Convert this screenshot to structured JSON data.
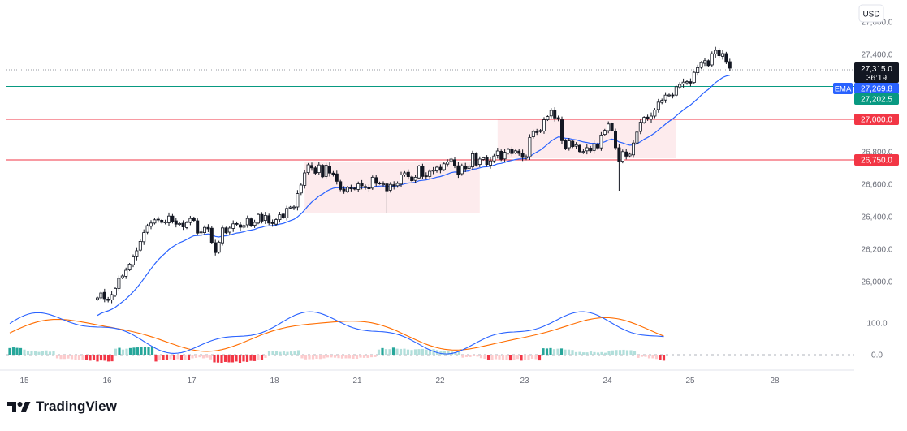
{
  "brand": {
    "name": "TradingView"
  },
  "currency": "USD",
  "price_tag": {
    "price": "27,315.0",
    "countdown": "36:19"
  },
  "colors": {
    "up": "#089981",
    "down": "#f23645",
    "ema": "#2962ff",
    "signal": "#ff6d00",
    "zone": "#fde7ea",
    "candle": "#131722"
  },
  "chart_data": {
    "type": "candlestick",
    "title": "",
    "x_ticks": [
      "15",
      "16",
      "17",
      "18",
      "21",
      "22",
      "23",
      "24",
      "25",
      "28"
    ],
    "price_ticks": [
      {
        "value": 27600,
        "label": "27,600.0"
      },
      {
        "value": 27400,
        "label": "27,400.0"
      },
      {
        "value": 26800,
        "label": "26,800.0"
      },
      {
        "value": 26600,
        "label": "26,600.0"
      },
      {
        "value": 26400,
        "label": "26,400.0"
      },
      {
        "value": 26200,
        "label": "26,200.0"
      },
      {
        "value": 26000,
        "label": "26,000.0"
      }
    ],
    "ylim": [
      25900,
      27650
    ],
    "last_price": 27315.0,
    "horizontal_lines": [
      {
        "value": 27202.5,
        "label": "27,202.5",
        "color": "#089981"
      },
      {
        "value": 27000.0,
        "label": "27,000.0",
        "color": "#f23645"
      },
      {
        "value": 26750.0,
        "label": "26,750.0",
        "color": "#f23645"
      }
    ],
    "ema": {
      "name": "EMA",
      "value_label": "27,269.8"
    },
    "zones": [
      {
        "from_bar": 58,
        "to_bar": 107,
        "low": 26420,
        "high": 26735
      },
      {
        "from_bar": 112,
        "to_bar": 162,
        "low": 26760,
        "high": 27000
      }
    ],
    "closes": [
      25900,
      25930,
      25895,
      25885,
      25920,
      25958,
      26020,
      26035,
      26070,
      26108,
      26153,
      26190,
      26248,
      26302,
      26345,
      26361,
      26381,
      26380,
      26365,
      26367,
      26404,
      26371,
      26354,
      26358,
      26337,
      26364,
      26389,
      26377,
      26299,
      26306,
      26334,
      26325,
      26242,
      26179,
      26243,
      26331,
      26301,
      26330,
      26356,
      26354,
      26335,
      26346,
      26389,
      26345,
      26365,
      26414,
      26373,
      26408,
      26361,
      26358,
      26382,
      26412,
      26395,
      26451,
      26459,
      26460,
      26542,
      26595,
      26670,
      26720,
      26701,
      26668,
      26719,
      26646,
      26717,
      26669,
      26660,
      26618,
      26568,
      26559,
      26581,
      26572,
      26570,
      26602,
      26590,
      26579,
      26572,
      26643,
      26605,
      26606,
      26602,
      26559,
      26599,
      26589,
      26605,
      26657,
      26670,
      26647,
      26622,
      26643,
      26712,
      26648,
      26650,
      26680,
      26686,
      26705,
      26686,
      26726,
      26738,
      26755,
      26714,
      26661,
      26714,
      26695,
      26711,
      26788,
      26718,
      26755,
      26763,
      26722,
      26744,
      26774,
      26805,
      26754,
      26797,
      26815,
      26789,
      26806,
      26790,
      26765,
      26770,
      26888,
      26925,
      26922,
      26931,
      26997,
      27017,
      27055,
      27008,
      27001,
      26868,
      26821,
      26867,
      26832,
      26843,
      26801,
      26802,
      26825,
      26806,
      26849,
      26824,
      26903,
      26932,
      26971,
      26932,
      26825,
      26738,
      26801,
      26773,
      26785,
      26854,
      26921,
      26982,
      27012,
      27005,
      27020,
      27057,
      27106,
      27117,
      27149,
      27150,
      27145,
      27201,
      27215,
      27229,
      27232,
      27223,
      27289,
      27318,
      27349,
      27361,
      27331,
      27404,
      27425,
      27392,
      27405,
      27351,
      27315
    ],
    "volume_histogram": [
      31,
      34,
      32,
      31,
      24,
      19,
      16,
      17,
      13,
      17,
      20,
      14,
      18,
      17,
      20,
      20,
      18,
      21,
      24,
      24,
      24,
      26,
      28,
      26,
      32,
      27,
      28,
      32,
      31,
      28,
      32,
      24,
      28,
      31,
      33,
      34,
      37,
      36,
      36,
      37,
      32,
      24,
      25,
      26,
      21,
      26,
      21,
      25,
      24,
      25,
      17,
      15,
      12,
      17,
      14,
      22,
      36,
      37,
      38,
      34,
      36,
      36,
      32,
      38,
      32,
      34,
      29,
      30,
      24,
      25,
      15,
      19,
      16,
      19,
      13,
      15,
      13,
      15,
      15,
      21,
      17,
      22,
      21,
      21,
      19,
      20,
      17,
      13,
      13,
      14,
      16,
      18,
      17,
      17,
      19,
      19,
      14,
      15,
      15,
      12,
      11,
      24,
      31,
      26,
      26,
      33,
      28,
      27,
      28,
      24,
      22,
      25,
      26,
      27,
      24,
      25,
      26,
      22,
      19,
      16,
      16,
      14,
      11,
      13,
      14,
      11,
      11,
      5,
      9,
      16,
      19,
      25,
      24,
      21,
      22,
      23,
      23,
      27,
      24,
      20,
      28,
      24,
      23,
      19,
      21,
      27,
      30,
      29,
      31,
      26,
      28,
      29,
      24,
      24,
      22,
      12,
      13,
      11,
      11,
      15,
      12,
      10,
      12,
      9,
      19,
      20,
      22,
      22,
      23,
      21,
      21,
      17,
      15,
      10,
      10,
      17,
      17,
      20,
      25,
      28
    ]
  }
}
